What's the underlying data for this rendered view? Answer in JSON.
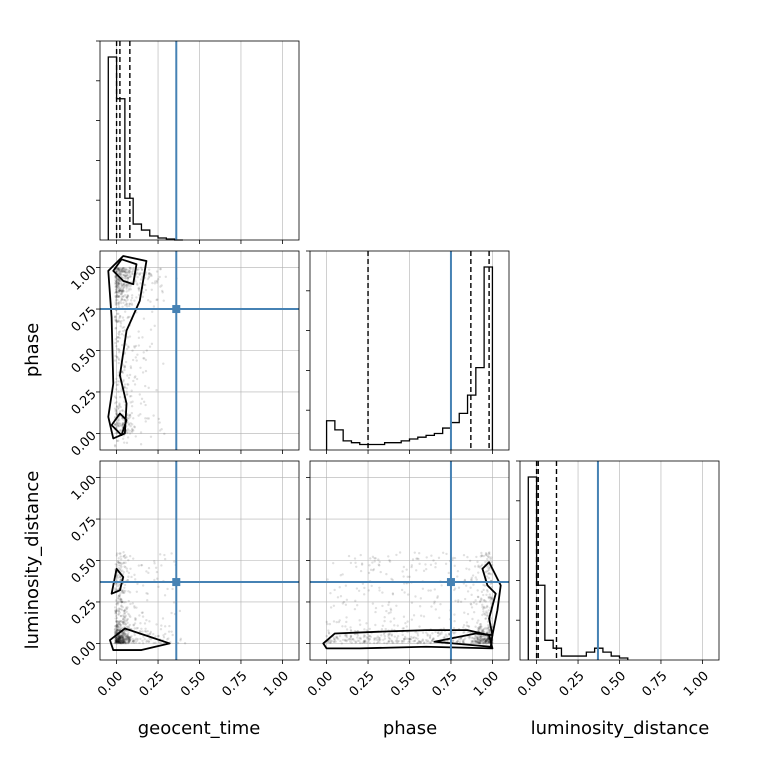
{
  "chart_data": {
    "type": "corner",
    "parameters": [
      "geocent_time",
      "phase",
      "luminosity_distance"
    ],
    "axis_labels": {
      "geocent_time": "geocent_time",
      "phase": "phase",
      "luminosity_distance": "luminosity_distance"
    },
    "range": [
      -0.1,
      1.1
    ],
    "ticks": [
      "0.00",
      "0.25",
      "0.50",
      "0.75",
      "1.00"
    ],
    "tick_values": [
      0,
      0.25,
      0.5,
      0.75,
      1.0
    ],
    "truths": {
      "geocent_time": 0.36,
      "phase": 0.75,
      "luminosity_distance": 0.37
    },
    "quantiles": {
      "geocent_time": [
        0.0,
        0.02,
        0.08
      ],
      "phase": [
        0.25,
        0.87,
        0.98
      ],
      "luminosity_distance": [
        0.0,
        0.01,
        0.12
      ]
    },
    "grid": true,
    "colors": {
      "truth": "#4682b4",
      "hist": "#000000",
      "grid": "#b0b0b0",
      "points": "#000000"
    },
    "histograms": {
      "geocent_time": {
        "edges": [
          -0.05,
          0.0,
          0.05,
          0.1,
          0.15,
          0.2,
          0.25,
          0.3,
          0.35,
          0.4
        ],
        "counts": [
          0.92,
          0.71,
          0.21,
          0.08,
          0.05,
          0.02,
          0.01,
          0.005,
          0.0
        ]
      },
      "phase": {
        "edges": [
          0.0,
          0.05,
          0.1,
          0.15,
          0.2,
          0.25,
          0.3,
          0.35,
          0.4,
          0.45,
          0.5,
          0.55,
          0.6,
          0.65,
          0.7,
          0.75,
          0.8,
          0.85,
          0.9,
          0.95,
          1.0
        ],
        "counts": [
          0.16,
          0.11,
          0.05,
          0.04,
          0.03,
          0.03,
          0.03,
          0.04,
          0.04,
          0.05,
          0.06,
          0.07,
          0.08,
          0.09,
          0.12,
          0.15,
          0.2,
          0.3,
          0.45,
          1.0
        ]
      },
      "luminosity_distance": {
        "edges": [
          -0.05,
          0.0,
          0.05,
          0.1,
          0.15,
          0.2,
          0.25,
          0.3,
          0.35,
          0.4,
          0.45,
          0.5,
          0.55
        ],
        "counts": [
          0.93,
          0.38,
          0.1,
          0.06,
          0.02,
          0.02,
          0.02,
          0.04,
          0.06,
          0.04,
          0.02,
          0.01
        ]
      }
    },
    "contours": {
      "phase_vs_geocent_time": [
        [
          [
            -0.02,
            0.98
          ],
          [
            0.03,
            1.05
          ],
          [
            0.12,
            1.02
          ],
          [
            0.1,
            0.9
          ],
          [
            0.04,
            0.92
          ],
          [
            -0.02,
            0.98
          ]
        ],
        [
          [
            -0.05,
            0.98
          ],
          [
            0.04,
            1.07
          ],
          [
            0.18,
            1.04
          ],
          [
            0.14,
            0.8
          ],
          [
            0.06,
            0.62
          ],
          [
            0.02,
            0.35
          ],
          [
            0.06,
            0.18
          ],
          [
            0.05,
            0.0
          ],
          [
            -0.02,
            -0.03
          ],
          [
            -0.05,
            0.1
          ],
          [
            -0.02,
            0.3
          ],
          [
            -0.03,
            0.7
          ],
          [
            -0.05,
            0.98
          ]
        ],
        [
          [
            -0.03,
            0.05
          ],
          [
            0.02,
            0.12
          ],
          [
            0.06,
            0.08
          ],
          [
            0.03,
            -0.01
          ],
          [
            -0.03,
            0.05
          ]
        ]
      ],
      "luminosity_distance_vs_geocent_time": [
        [
          [
            -0.04,
            0.02
          ],
          [
            0.05,
            0.09
          ],
          [
            0.2,
            0.04
          ],
          [
            0.32,
            0.0
          ],
          [
            0.15,
            -0.04
          ],
          [
            -0.02,
            -0.04
          ],
          [
            -0.04,
            0.02
          ]
        ],
        [
          [
            -0.03,
            0.3
          ],
          [
            0.0,
            0.45
          ],
          [
            0.04,
            0.4
          ],
          [
            0.02,
            0.32
          ],
          [
            -0.03,
            0.3
          ]
        ]
      ],
      "luminosity_distance_vs_phase": [
        [
          [
            -0.02,
            0.0
          ],
          [
            0.05,
            0.06
          ],
          [
            0.3,
            0.07
          ],
          [
            0.6,
            0.08
          ],
          [
            0.85,
            0.08
          ],
          [
            0.98,
            0.05
          ],
          [
            1.0,
            -0.03
          ],
          [
            0.6,
            -0.02
          ],
          [
            0.2,
            -0.03
          ],
          [
            0.0,
            -0.03
          ],
          [
            -0.02,
            0.0
          ]
        ],
        [
          [
            0.65,
            0.01
          ],
          [
            0.9,
            0.06
          ],
          [
            1.0,
            0.05
          ],
          [
            0.99,
            -0.02
          ],
          [
            0.65,
            0.01
          ]
        ],
        [
          [
            0.94,
            0.45
          ],
          [
            0.97,
            0.35
          ],
          [
            1.02,
            0.3
          ],
          [
            0.98,
            0.15
          ],
          [
            1.0,
            0.05
          ],
          [
            1.03,
            0.2
          ],
          [
            1.05,
            0.35
          ],
          [
            0.98,
            0.49
          ],
          [
            0.94,
            0.45
          ]
        ]
      ]
    }
  }
}
